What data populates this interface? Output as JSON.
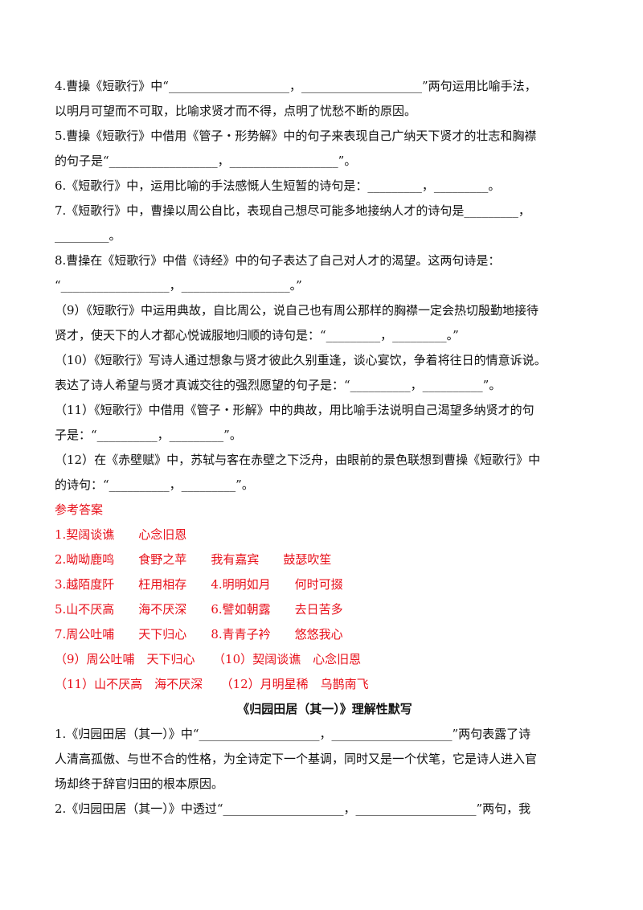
{
  "questions": [
    "4.曹操《短歌行》中“____________________，____________________”两句运用比喻手法，",
    "以明月可望而不可取，比喻求贤才而不得，点明了忧愁不断的原因。",
    "5.曹操《短歌行》中借用《管子・形势解》中的句子来表现自己广纳天下贤才的壮志和胸襟",
    "的句子是“__________________，__________________”。",
    "6.《短歌行》中，运用比喻的手法感慨人生短暂的诗句是：_________，_________。",
    "7.《短歌行》中，曹操以周公自比，表现自己想尽可能多地接纳人才的诗句是_________，",
    "_________。",
    "8.曹操在《短歌行》中借《诗经》中的句子表达了自己对人才的渴望。这两句诗是：",
    "“__________________，__________________。”",
    "（9）《短歌行》中运用典故，自比周公，说自己也有周公那样的胸襟一定会热切殷勤地接待",
    "贤才，使天下的人才都心悦诚服地归顺的诗句是：“_________，_________。”",
    "（10）《短歌行》写诗人通过想象与贤才彼此久别重逢，谈心宴饮，争着将往日的情意诉说。",
    "表达了诗人希望与贤才真诚交往的强烈愿望的句子是：“__________，__________”。",
    "（11）《短歌行》中借用《管子・形解》中的典故，用比喻手法说明自己渴望多纳贤才的句",
    "子是：“__________，_________”。",
    "（12）在《赤壁赋》中，苏轼与客在赤壁之下泛舟，由眼前的景色联想到曹操《短歌行》中",
    "的诗句：“__________，_________”。"
  ],
  "answers": {
    "heading": "参考答案",
    "lines": [
      "1.契阔谈谯　　心念旧恩",
      "2.呦呦鹿鸣　　食野之苹　　我有嘉宾　　鼓瑟吹笙",
      "3.越陌度阡　　枉用相存　　4.明明如月　　何时可掇",
      "5.山不厌高　　海不厌深　　6.譬如朝露　　去日苦多",
      "7.周公吐哺　　天下归心　　8.青青子衿　　悠悠我心",
      "（9）周公吐哺　天下归心　　（10）契阔谈谯　心念旧恩",
      "（11）山不厌高　海不厌深　　（12）月明星稀　乌鹊南飞"
    ]
  },
  "section2": {
    "title": "《归园田居（其一）》理解性默写",
    "lines": [
      "1.《归园田居（其一）》中“____________________，____________________”两句表露了诗",
      "人清高孤傲、与世不合的性格，为全诗定下一个基调，同时又是一个伏笔，它是诗人进入官",
      "场却终于辞官归田的根本原因。",
      "2.《归园田居（其一）》中透过“____________________，____________________”两句，我"
    ]
  }
}
